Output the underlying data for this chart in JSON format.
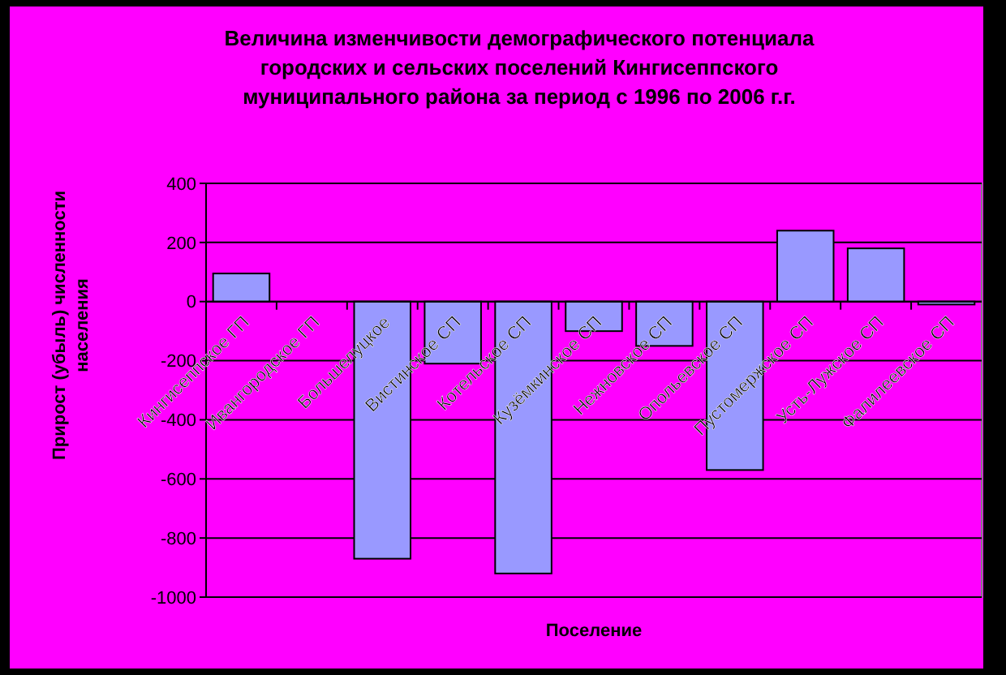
{
  "chart_data": {
    "type": "bar",
    "title": "Величина изменчивости демографического потенциала городских и сельских поселений Кингисеппского муниципального района за период с 1996 по 2006 г.г.",
    "xlabel": "Поселение",
    "ylabel": "Прирост (убыль) численности населения",
    "categories": [
      "Кингисеппское ГП",
      "Ивангородское ГП",
      "Большелуцкое",
      "Вистинское СП",
      "Котельское СП",
      "Кузёмкинское СП",
      "Нежновское СП",
      "Опольевское СП",
      "Пустомержское СП",
      "Усть-Лужское СП",
      "Фалилеевское СП"
    ],
    "values": [
      95,
      null,
      -870,
      -210,
      -920,
      -100,
      -150,
      -570,
      240,
      180,
      -10
    ],
    "color": "#9999ff",
    "ylim": [
      -1000,
      400
    ],
    "yticks": [
      -1000,
      -800,
      -600,
      -400,
      -200,
      0,
      200,
      400
    ],
    "grid": "y"
  }
}
